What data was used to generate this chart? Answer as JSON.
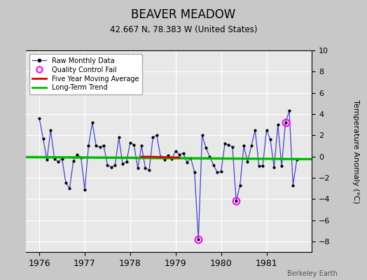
{
  "title": "BEAVER MEADOW",
  "subtitle": "42.667 N, 78.383 W (United States)",
  "ylabel_right": "Temperature Anomaly (°C)",
  "credit": "Berkeley Earth",
  "ylim": [
    -9,
    10
  ],
  "yticks": [
    -8,
    -6,
    -4,
    -2,
    0,
    2,
    4,
    6,
    8,
    10
  ],
  "xlim": [
    1975.7,
    1982.0
  ],
  "xtick_labels": [
    "1976",
    "1977",
    "1978",
    "1979",
    "1980",
    "1981"
  ],
  "xtick_positions": [
    1976,
    1977,
    1978,
    1979,
    1980,
    1981
  ],
  "background_color": "#c8c8c8",
  "plot_background": "#e8e8e8",
  "grid_color": "#ffffff",
  "line_color": "#4444cc",
  "marker_color": "#000000",
  "trend_color": "#00bb00",
  "moving_avg_color": "#dd0000",
  "qc_fail_color": "#ff00ff",
  "trend_slope": -0.03,
  "trend_intercept": -0.15,
  "moving_avg_data": [
    [
      1978.25,
      -0.02
    ],
    [
      1978.33,
      -0.02
    ],
    [
      1978.42,
      -0.03
    ],
    [
      1978.5,
      -0.03
    ],
    [
      1978.58,
      -0.04
    ],
    [
      1978.67,
      -0.05
    ],
    [
      1978.75,
      -0.06
    ],
    [
      1978.83,
      -0.07
    ],
    [
      1978.92,
      -0.08
    ],
    [
      1979.0,
      -0.09
    ],
    [
      1979.08,
      -0.1
    ]
  ],
  "monthly_data": [
    [
      1976.0,
      3.6
    ],
    [
      1976.083,
      1.7
    ],
    [
      1976.167,
      -0.3
    ],
    [
      1976.25,
      2.5
    ],
    [
      1976.333,
      -0.2
    ],
    [
      1976.417,
      -0.5
    ],
    [
      1976.5,
      -0.2
    ],
    [
      1976.583,
      -2.5
    ],
    [
      1976.667,
      -3.0
    ],
    [
      1976.75,
      -0.4
    ],
    [
      1976.833,
      0.2
    ],
    [
      1976.917,
      -0.1
    ],
    [
      1977.0,
      -3.1
    ],
    [
      1977.083,
      1.0
    ],
    [
      1977.167,
      3.2
    ],
    [
      1977.25,
      1.0
    ],
    [
      1977.333,
      0.9
    ],
    [
      1977.417,
      1.0
    ],
    [
      1977.5,
      -0.8
    ],
    [
      1977.583,
      -1.0
    ],
    [
      1977.667,
      -0.8
    ],
    [
      1977.75,
      1.8
    ],
    [
      1977.833,
      -0.7
    ],
    [
      1977.917,
      -0.5
    ],
    [
      1978.0,
      1.3
    ],
    [
      1978.083,
      1.1
    ],
    [
      1978.167,
      -1.1
    ],
    [
      1978.25,
      1.0
    ],
    [
      1978.333,
      -1.1
    ],
    [
      1978.417,
      -1.3
    ],
    [
      1978.5,
      1.8
    ],
    [
      1978.583,
      2.0
    ],
    [
      1978.667,
      0.0
    ],
    [
      1978.75,
      -0.3
    ],
    [
      1978.833,
      0.1
    ],
    [
      1978.917,
      -0.2
    ],
    [
      1979.0,
      0.5
    ],
    [
      1979.083,
      0.2
    ],
    [
      1979.167,
      0.3
    ],
    [
      1979.25,
      -0.55
    ],
    [
      1979.333,
      -0.15
    ],
    [
      1979.417,
      -1.5
    ],
    [
      1979.5,
      -7.8
    ],
    [
      1979.583,
      2.0
    ],
    [
      1979.667,
      0.8
    ],
    [
      1979.75,
      0.0
    ],
    [
      1979.833,
      -0.8
    ],
    [
      1979.917,
      -1.5
    ],
    [
      1980.0,
      -1.4
    ],
    [
      1980.083,
      1.2
    ],
    [
      1980.167,
      1.1
    ],
    [
      1980.25,
      0.9
    ],
    [
      1980.333,
      -4.2
    ],
    [
      1980.417,
      -2.7
    ],
    [
      1980.5,
      1.0
    ],
    [
      1980.583,
      -0.5
    ],
    [
      1980.667,
      1.0
    ],
    [
      1980.75,
      2.5
    ],
    [
      1980.833,
      -0.9
    ],
    [
      1980.917,
      -0.9
    ],
    [
      1981.0,
      2.5
    ],
    [
      1981.083,
      1.6
    ],
    [
      1981.167,
      -1.0
    ],
    [
      1981.25,
      3.0
    ],
    [
      1981.333,
      -0.9
    ],
    [
      1981.417,
      3.2
    ],
    [
      1981.5,
      4.3
    ],
    [
      1981.583,
      -2.7
    ],
    [
      1981.667,
      -0.3
    ]
  ],
  "qc_fail_points": [
    [
      1979.5,
      -7.8
    ],
    [
      1980.333,
      -4.2
    ],
    [
      1981.417,
      3.2
    ]
  ]
}
